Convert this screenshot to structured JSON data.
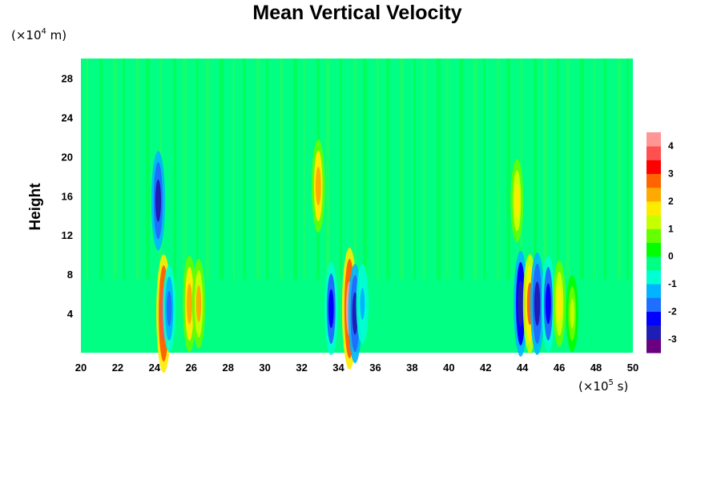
{
  "chart_data": {
    "type": "heatmap",
    "title": "Mean Vertical Velocity",
    "ylabel": "Height",
    "y_unit": {
      "prefix": "(×10",
      "exponent": "4",
      "suffix": " m)"
    },
    "x_unit": {
      "prefix": "(×10",
      "exponent": "5",
      "suffix": " s)"
    },
    "xlim": [
      20,
      50
    ],
    "ylim": [
      0,
      30
    ],
    "x_ticks": [
      20,
      22,
      24,
      26,
      28,
      30,
      32,
      34,
      36,
      38,
      40,
      42,
      44,
      46,
      48,
      50
    ],
    "y_ticks": [
      4,
      8,
      12,
      16,
      20,
      24,
      28
    ],
    "colorbar": {
      "range": [
        -3.5,
        4.5
      ],
      "ticks": [
        4,
        3,
        2,
        1,
        0,
        -1,
        -2,
        -3
      ],
      "colors": [
        "#6a0080",
        "#1e1eb4",
        "#0000ff",
        "#1e6eff",
        "#00b4ff",
        "#00ffd2",
        "#00ff82",
        "#00ff00",
        "#64ff00",
        "#c8ff00",
        "#ffeb00",
        "#ffaa00",
        "#ff6400",
        "#ff0000",
        "#ff5050",
        "#ff9696"
      ]
    },
    "background_value": 0.1,
    "features": [
      {
        "x": 24.2,
        "y": 15.5,
        "value": -2.6
      },
      {
        "x": 24.5,
        "y": 4.0,
        "value": 3.8
      },
      {
        "x": 24.8,
        "y": 4.5,
        "value": -1.8
      },
      {
        "x": 25.9,
        "y": 5.0,
        "value": 2.4
      },
      {
        "x": 26.4,
        "y": 5.0,
        "value": 2.0
      },
      {
        "x": 32.9,
        "y": 17.0,
        "value": 2.2
      },
      {
        "x": 33.6,
        "y": 4.5,
        "value": -2.2
      },
      {
        "x": 34.6,
        "y": 4.5,
        "value": 4.0
      },
      {
        "x": 34.9,
        "y": 4.0,
        "value": -2.6
      },
      {
        "x": 35.3,
        "y": 5.0,
        "value": -1.4
      },
      {
        "x": 43.9,
        "y": 5.0,
        "value": -3.0
      },
      {
        "x": 44.4,
        "y": 5.0,
        "value": 2.6
      },
      {
        "x": 44.8,
        "y": 5.0,
        "value": -2.8
      },
      {
        "x": 45.4,
        "y": 5.0,
        "value": -2.4
      },
      {
        "x": 46.0,
        "y": 5.0,
        "value": 1.8
      },
      {
        "x": 46.7,
        "y": 4.0,
        "value": 1.2
      },
      {
        "x": 43.7,
        "y": 15.5,
        "value": 1.6
      }
    ]
  }
}
